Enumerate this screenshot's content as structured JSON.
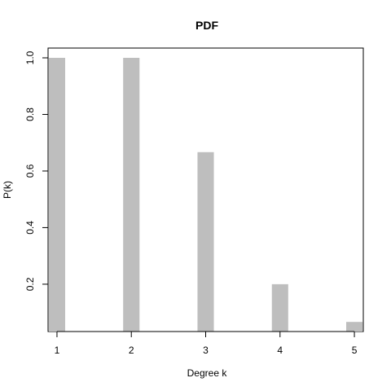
{
  "chart_data": {
    "type": "bar",
    "title": "PDF",
    "xlabel": "Degree k",
    "ylabel": "P(k)",
    "categories": [
      "1",
      "2",
      "3",
      "4",
      "5"
    ],
    "x": [
      1,
      2,
      3,
      4,
      5
    ],
    "values": [
      1.0,
      1.0,
      0.6667,
      0.2,
      0.0667
    ],
    "xlim": [
      0.88,
      5.12
    ],
    "ylim": [
      0.0327,
      1.0
    ],
    "yticks": [
      "0.2",
      "0.4",
      "0.6",
      "0.8",
      "1.0"
    ],
    "ytick_values": [
      0.2,
      0.4,
      0.6,
      0.8,
      1.0
    ],
    "grid": false,
    "bar_color": "#bebebe",
    "axis_color": "#000000"
  }
}
